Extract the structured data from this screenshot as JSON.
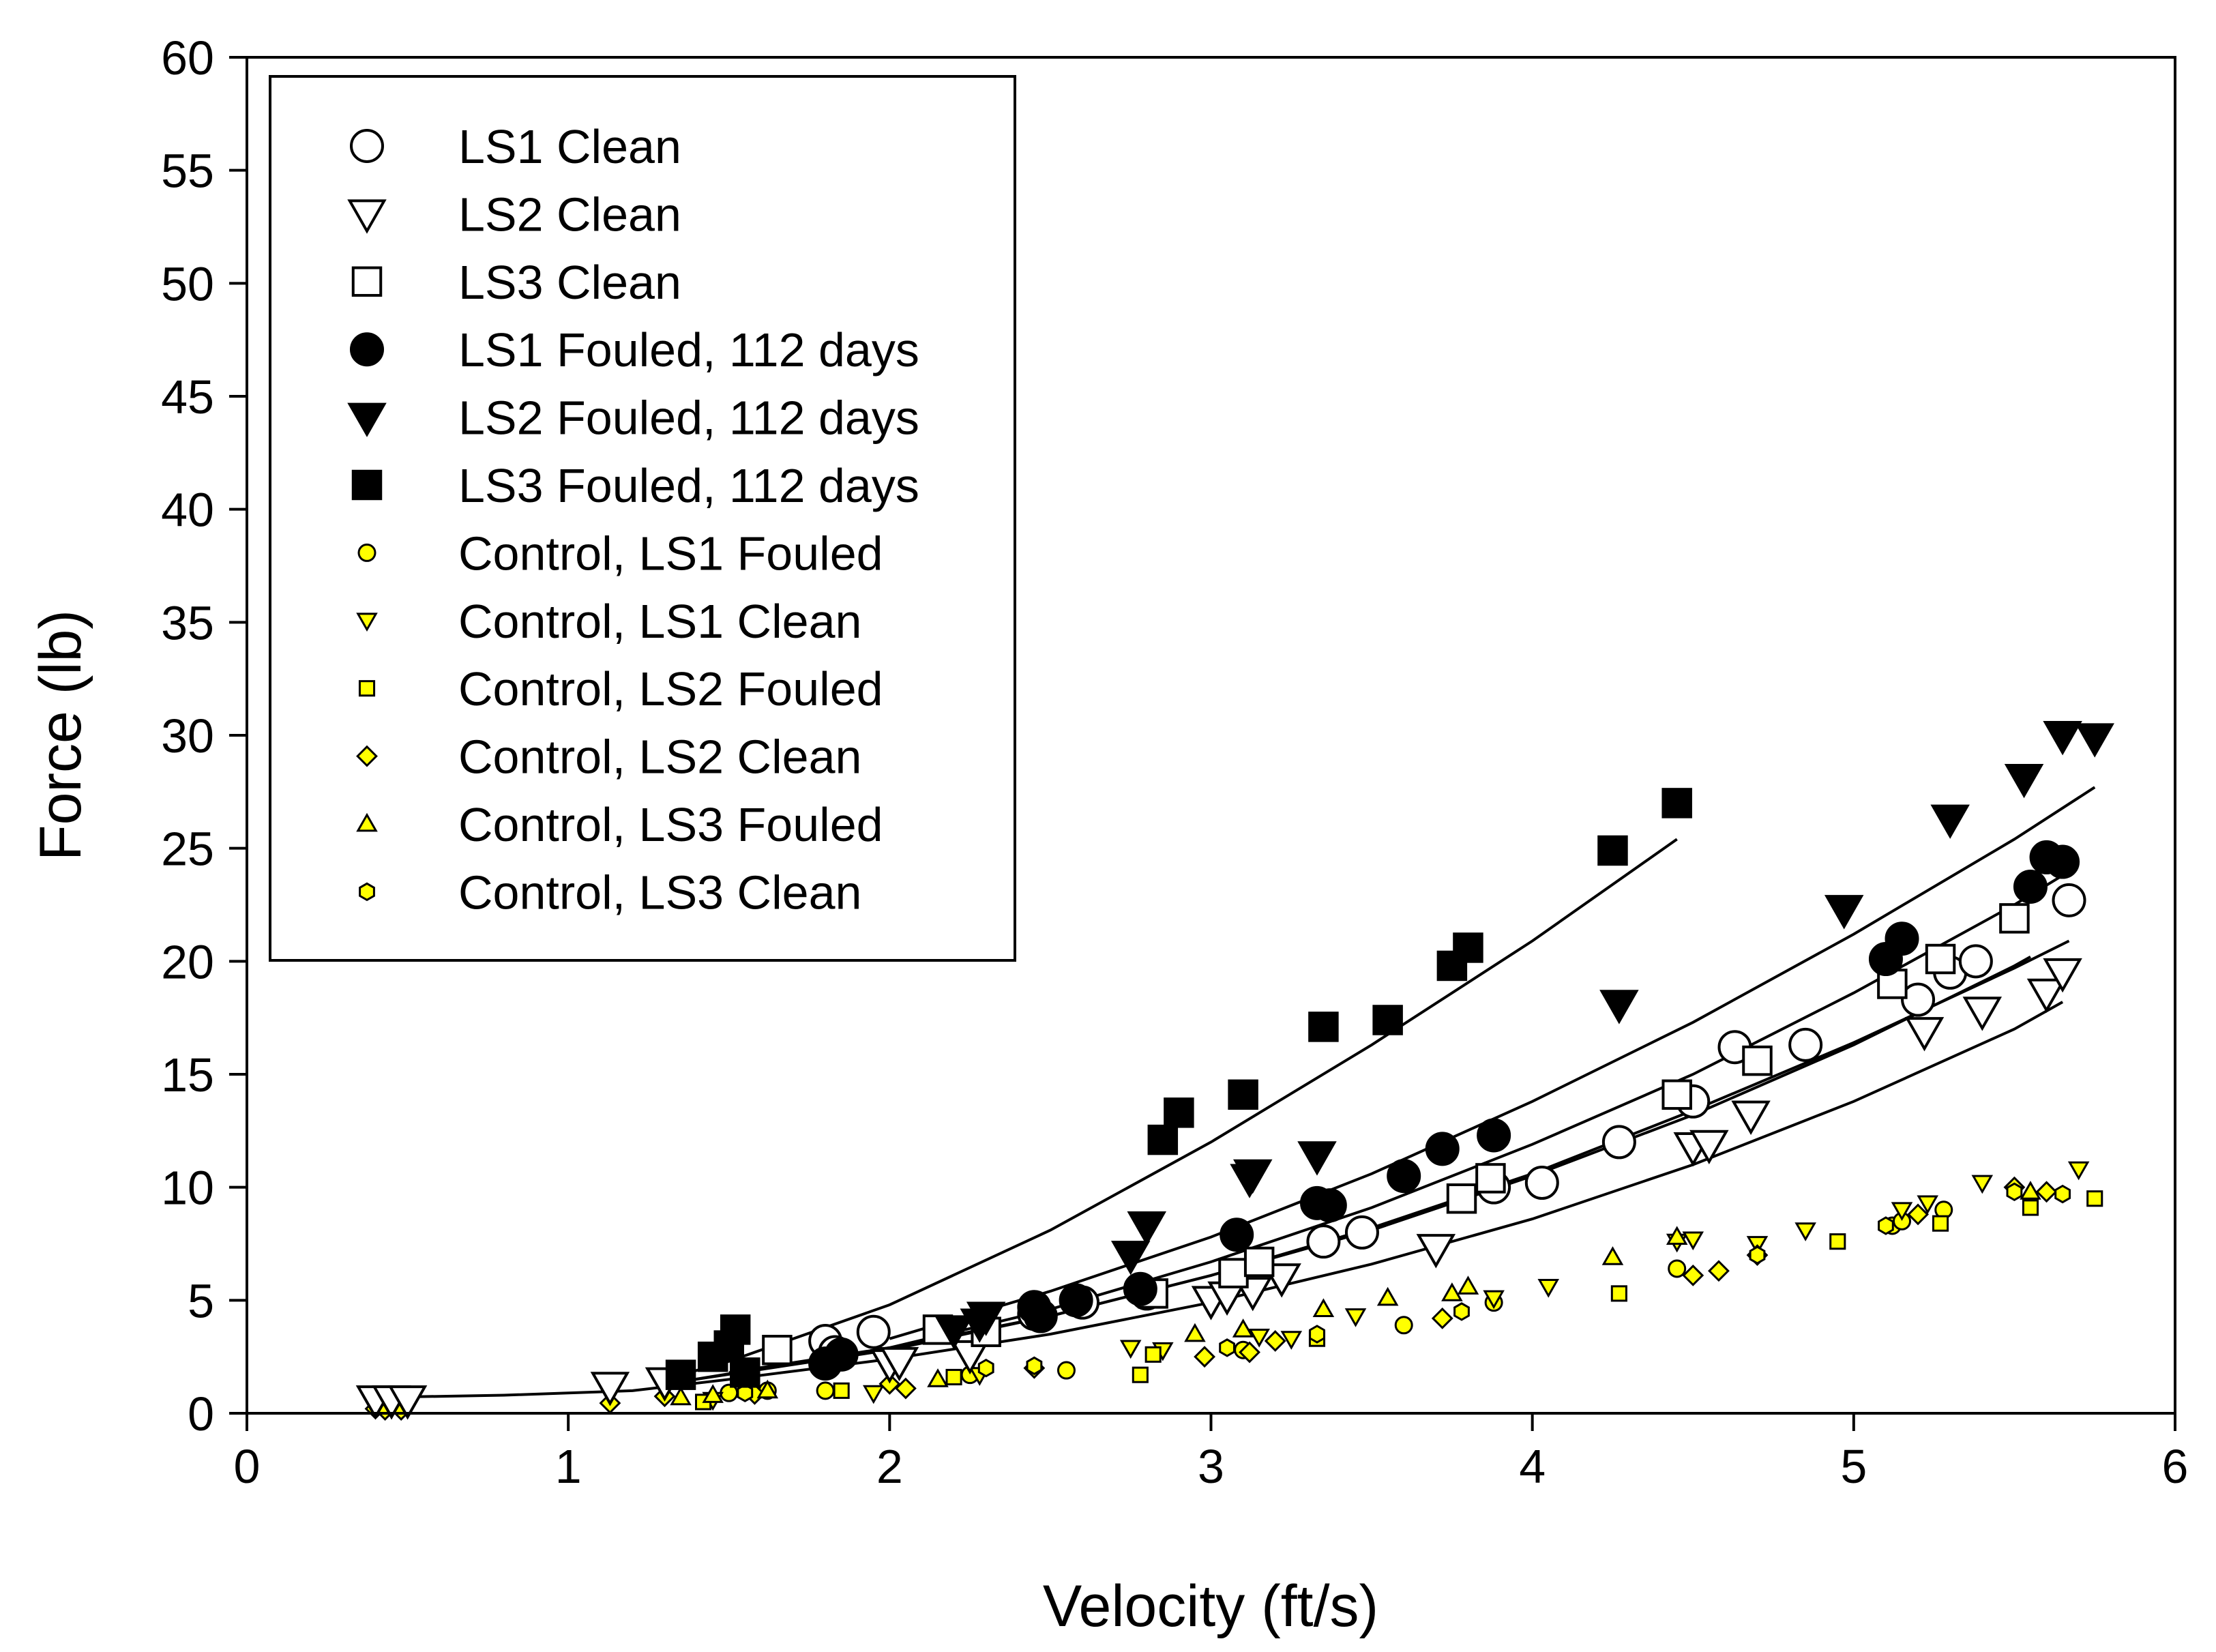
{
  "chart_data": {
    "type": "scatter",
    "title": "",
    "xlabel": "Velocity (ft/s)",
    "ylabel": "Force (lb)",
    "xlim": [
      0,
      6
    ],
    "ylim": [
      0,
      60
    ],
    "xticks": [
      0,
      1,
      2,
      3,
      4,
      5,
      6
    ],
    "yticks": [
      0,
      5,
      10,
      15,
      20,
      25,
      30,
      35,
      40,
      45,
      50,
      55,
      60
    ],
    "legend_position": "top-left",
    "series": [
      {
        "name": "LS1 Clean",
        "marker": "circle",
        "filled": false,
        "size": "large",
        "fill": "#ffffff",
        "points": [
          [
            1.8,
            3.2
          ],
          [
            1.83,
            2.7
          ],
          [
            1.95,
            3.6
          ],
          [
            2.45,
            4.4
          ],
          [
            2.6,
            4.9
          ],
          [
            2.8,
            5.3
          ],
          [
            3.35,
            7.6
          ],
          [
            3.47,
            8.0
          ],
          [
            3.88,
            10.0
          ],
          [
            4.03,
            10.2
          ],
          [
            4.27,
            12.0
          ],
          [
            4.5,
            13.8
          ],
          [
            4.63,
            16.2
          ],
          [
            4.85,
            16.3
          ],
          [
            5.2,
            18.3
          ],
          [
            5.3,
            19.5
          ],
          [
            5.38,
            20.0
          ],
          [
            5.67,
            22.7
          ]
        ],
        "curve": [
          [
            1.35,
            1.4
          ],
          [
            2,
            2.8
          ],
          [
            2.5,
            4.3
          ],
          [
            3,
            6.1
          ],
          [
            3.5,
            8.2
          ],
          [
            4,
            10.6
          ],
          [
            4.5,
            13.4
          ],
          [
            5,
            16.4
          ],
          [
            5.5,
            19.7
          ],
          [
            5.67,
            20.9
          ]
        ]
      },
      {
        "name": "LS2 Clean",
        "marker": "triangle-down",
        "filled": false,
        "size": "large",
        "fill": "#ffffff",
        "points": [
          [
            0.4,
            0.6
          ],
          [
            0.45,
            0.6
          ],
          [
            0.5,
            0.6
          ],
          [
            1.13,
            1.2
          ],
          [
            1.3,
            1.4
          ],
          [
            2.0,
            2.2
          ],
          [
            2.03,
            2.3
          ],
          [
            2.25,
            2.6
          ],
          [
            3.0,
            5.0
          ],
          [
            3.05,
            5.2
          ],
          [
            3.13,
            5.4
          ],
          [
            3.22,
            6.0
          ],
          [
            3.7,
            7.3
          ],
          [
            4.5,
            11.8
          ],
          [
            4.55,
            11.9
          ],
          [
            4.68,
            13.2
          ],
          [
            5.22,
            16.9
          ],
          [
            5.4,
            17.8
          ],
          [
            5.6,
            18.6
          ],
          [
            5.65,
            19.5
          ]
        ],
        "curve": [
          [
            0.4,
            0.7
          ],
          [
            0.8,
            0.8
          ],
          [
            1.2,
            1.0
          ],
          [
            1.5,
            1.5
          ],
          [
            2,
            2.4
          ],
          [
            2.5,
            3.5
          ],
          [
            3,
            4.9
          ],
          [
            3.5,
            6.6
          ],
          [
            4,
            8.6
          ],
          [
            4.5,
            11.0
          ],
          [
            5,
            13.8
          ],
          [
            5.5,
            17.0
          ],
          [
            5.65,
            18.2
          ]
        ]
      },
      {
        "name": "LS3 Clean",
        "marker": "square",
        "filled": false,
        "size": "large",
        "fill": "#ffffff",
        "points": [
          [
            1.65,
            2.8
          ],
          [
            2.15,
            3.7
          ],
          [
            2.3,
            3.6
          ],
          [
            2.82,
            5.3
          ],
          [
            3.07,
            6.2
          ],
          [
            3.15,
            6.7
          ],
          [
            3.78,
            9.5
          ],
          [
            3.87,
            10.4
          ],
          [
            4.45,
            14.1
          ],
          [
            4.7,
            15.6
          ],
          [
            5.12,
            19.0
          ],
          [
            5.27,
            20.1
          ],
          [
            5.5,
            21.9
          ]
        ],
        "curve": [
          [
            1.5,
            1.8
          ],
          [
            2,
            2.9
          ],
          [
            2.5,
            4.3
          ],
          [
            3,
            6.1
          ],
          [
            3.5,
            8.1
          ],
          [
            4,
            10.5
          ],
          [
            4.5,
            13.2
          ],
          [
            5,
            16.3
          ],
          [
            5.5,
            19.8
          ],
          [
            5.55,
            20.2
          ]
        ]
      },
      {
        "name": "LS1 Fouled, 112 days",
        "marker": "circle",
        "filled": true,
        "size": "large",
        "fill": "#000000",
        "points": [
          [
            1.8,
            2.2
          ],
          [
            1.85,
            2.6
          ],
          [
            2.45,
            4.7
          ],
          [
            2.47,
            4.3
          ],
          [
            2.58,
            5.0
          ],
          [
            2.78,
            5.5
          ],
          [
            3.08,
            7.9
          ],
          [
            3.33,
            9.3
          ],
          [
            3.37,
            9.2
          ],
          [
            3.6,
            10.5
          ],
          [
            3.72,
            11.7
          ],
          [
            3.88,
            12.3
          ],
          [
            5.1,
            20.1
          ],
          [
            5.15,
            21.0
          ],
          [
            5.55,
            23.3
          ],
          [
            5.6,
            24.6
          ],
          [
            5.65,
            24.4
          ]
        ],
        "curve": [
          [
            1.35,
            1.4
          ],
          [
            2,
            2.9
          ],
          [
            2.5,
            4.6
          ],
          [
            3,
            6.7
          ],
          [
            3.5,
            9.1
          ],
          [
            4,
            11.9
          ],
          [
            4.5,
            15.0
          ],
          [
            5,
            18.6
          ],
          [
            5.5,
            22.5
          ],
          [
            5.65,
            23.8
          ]
        ]
      },
      {
        "name": "LS2 Fouled, 112 days",
        "marker": "triangle-down",
        "filled": true,
        "size": "large",
        "fill": "#000000",
        "points": [
          [
            2.2,
            3.7
          ],
          [
            2.28,
            4.0
          ],
          [
            2.3,
            4.3
          ],
          [
            2.75,
            7.0
          ],
          [
            2.8,
            8.3
          ],
          [
            3.12,
            10.4
          ],
          [
            3.13,
            10.6
          ],
          [
            3.33,
            11.4
          ],
          [
            4.27,
            18.1
          ],
          [
            4.97,
            22.3
          ],
          [
            5.3,
            26.3
          ],
          [
            5.53,
            28.1
          ],
          [
            5.65,
            30.0
          ],
          [
            5.75,
            29.9
          ]
        ],
        "curve": [
          [
            2,
            3.3
          ],
          [
            2.5,
            5.4
          ],
          [
            3,
            7.8
          ],
          [
            3.5,
            10.6
          ],
          [
            4,
            13.8
          ],
          [
            4.5,
            17.3
          ],
          [
            5,
            21.2
          ],
          [
            5.5,
            25.4
          ],
          [
            5.75,
            27.7
          ]
        ]
      },
      {
        "name": "LS3 Fouled, 112 days",
        "marker": "square",
        "filled": true,
        "size": "large",
        "fill": "#000000",
        "points": [
          [
            1.35,
            1.7
          ],
          [
            1.45,
            2.5
          ],
          [
            1.5,
            3.0
          ],
          [
            1.52,
            3.7
          ],
          [
            1.55,
            1.8
          ],
          [
            2.85,
            12.1
          ],
          [
            2.9,
            13.3
          ],
          [
            3.1,
            14.1
          ],
          [
            3.35,
            17.1
          ],
          [
            3.55,
            17.4
          ],
          [
            3.75,
            19.8
          ],
          [
            3.8,
            20.6
          ],
          [
            4.25,
            24.9
          ],
          [
            4.45,
            27.0
          ]
        ],
        "curve": [
          [
            1.35,
            1.7
          ],
          [
            1.5,
            2.3
          ],
          [
            2,
            4.8
          ],
          [
            2.5,
            8.1
          ],
          [
            3,
            12.0
          ],
          [
            3.5,
            16.3
          ],
          [
            4,
            20.9
          ],
          [
            4.45,
            25.4
          ]
        ]
      },
      {
        "name": "Control, LS1 Fouled",
        "marker": "circle",
        "filled": true,
        "size": "small",
        "fill": "#ffff00",
        "points": [
          [
            1.5,
            0.9
          ],
          [
            1.62,
            1.0
          ],
          [
            1.8,
            1.0
          ],
          [
            2.25,
            1.7
          ],
          [
            2.55,
            1.9
          ],
          [
            3.1,
            2.8
          ],
          [
            3.6,
            3.9
          ],
          [
            3.88,
            4.9
          ],
          [
            4.45,
            6.4
          ],
          [
            5.12,
            8.3
          ],
          [
            5.15,
            8.5
          ],
          [
            5.28,
            9.0
          ]
        ]
      },
      {
        "name": "Control, LS1 Clean",
        "marker": "triangle-down",
        "filled": true,
        "size": "small",
        "fill": "#ffff00",
        "points": [
          [
            1.45,
            0.6
          ],
          [
            1.95,
            0.9
          ],
          [
            2.28,
            1.7
          ],
          [
            2.75,
            2.9
          ],
          [
            2.85,
            2.8
          ],
          [
            3.15,
            3.4
          ],
          [
            3.25,
            3.3
          ],
          [
            3.45,
            4.3
          ],
          [
            3.88,
            5.1
          ],
          [
            4.05,
            5.6
          ],
          [
            4.45,
            7.6
          ],
          [
            4.5,
            7.7
          ],
          [
            4.7,
            7.5
          ],
          [
            4.85,
            8.1
          ],
          [
            5.15,
            9.0
          ],
          [
            5.23,
            9.3
          ],
          [
            5.4,
            10.2
          ],
          [
            5.7,
            10.8
          ]
        ]
      },
      {
        "name": "Control, LS2 Fouled",
        "marker": "square",
        "filled": true,
        "size": "small",
        "fill": "#ffff00",
        "points": [
          [
            1.42,
            0.5
          ],
          [
            1.85,
            1.0
          ],
          [
            2.2,
            1.6
          ],
          [
            2.78,
            1.7
          ],
          [
            2.82,
            2.6
          ],
          [
            3.33,
            3.3
          ],
          [
            4.27,
            5.3
          ],
          [
            4.95,
            7.6
          ],
          [
            5.27,
            8.4
          ],
          [
            5.55,
            9.1
          ],
          [
            5.75,
            9.5
          ]
        ]
      },
      {
        "name": "Control, LS2 Clean",
        "marker": "diamond",
        "filled": true,
        "size": "small",
        "fill": "#ffff00",
        "points": [
          [
            0.4,
            0.2
          ],
          [
            0.43,
            0.15
          ],
          [
            0.48,
            0.15
          ],
          [
            1.13,
            0.45
          ],
          [
            1.3,
            0.75
          ],
          [
            1.58,
            0.85
          ],
          [
            2.0,
            1.3
          ],
          [
            2.05,
            1.1
          ],
          [
            2.45,
            2.0
          ],
          [
            2.98,
            2.5
          ],
          [
            3.12,
            2.7
          ],
          [
            3.2,
            3.2
          ],
          [
            3.72,
            4.2
          ],
          [
            4.5,
            6.1
          ],
          [
            4.58,
            6.3
          ],
          [
            4.7,
            7.0
          ],
          [
            5.2,
            8.8
          ],
          [
            5.5,
            10.0
          ],
          [
            5.6,
            9.8
          ]
        ]
      },
      {
        "name": "Control, LS3 Fouled",
        "marker": "triangle-up",
        "filled": true,
        "size": "small",
        "fill": "#ffff00",
        "points": [
          [
            1.35,
            0.7
          ],
          [
            1.45,
            0.8
          ],
          [
            1.62,
            1.0
          ],
          [
            2.15,
            1.5
          ],
          [
            2.95,
            3.5
          ],
          [
            3.1,
            3.7
          ],
          [
            3.35,
            4.6
          ],
          [
            3.55,
            5.1
          ],
          [
            3.75,
            5.3
          ],
          [
            3.8,
            5.6
          ],
          [
            4.25,
            6.9
          ],
          [
            4.45,
            7.8
          ],
          [
            5.55,
            9.8
          ]
        ]
      },
      {
        "name": "Control, LS3 Clean",
        "marker": "hexagon",
        "filled": true,
        "size": "small",
        "fill": "#ffff00",
        "points": [
          [
            1.55,
            0.9
          ],
          [
            2.3,
            2.0
          ],
          [
            2.45,
            2.1
          ],
          [
            3.05,
            2.9
          ],
          [
            3.33,
            3.5
          ],
          [
            3.78,
            4.5
          ],
          [
            4.7,
            7.0
          ],
          [
            5.1,
            8.3
          ],
          [
            5.5,
            9.8
          ],
          [
            5.65,
            9.7
          ]
        ]
      }
    ]
  }
}
